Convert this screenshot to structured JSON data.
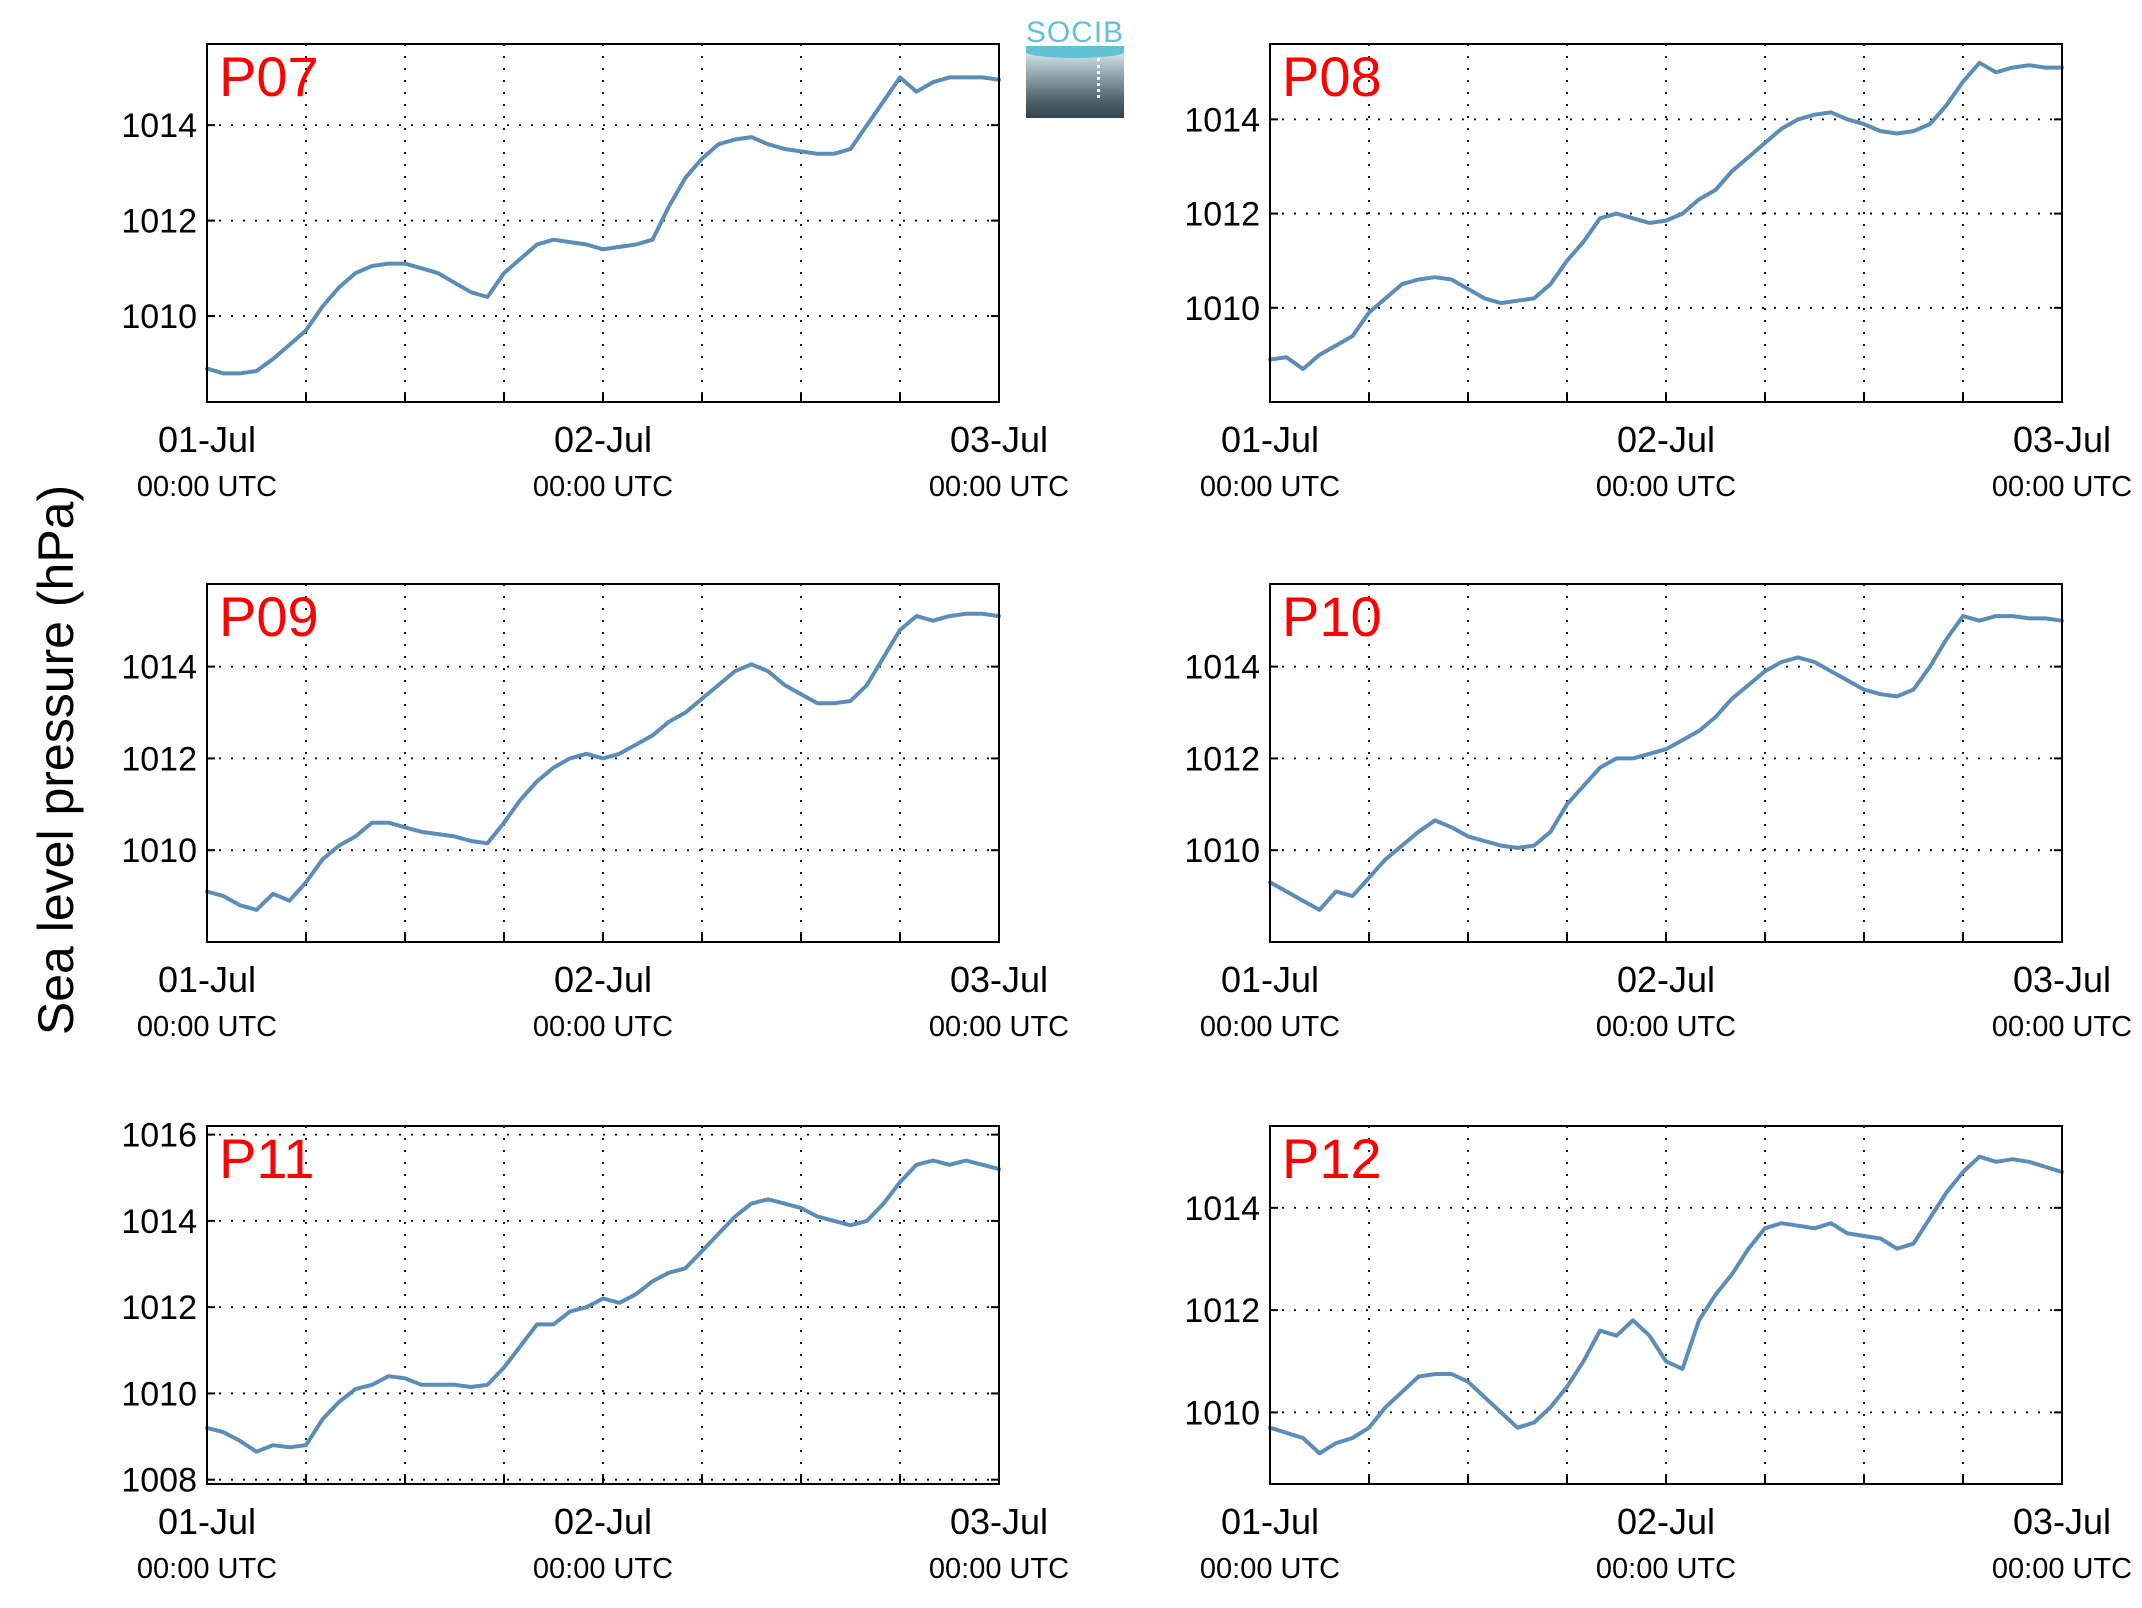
{
  "colors": {
    "line": "#5b8db8",
    "panel_label": "#ff0000",
    "axis": "#000000",
    "logo": "#5fc3d5"
  },
  "logo": {
    "text": "SOCIB"
  },
  "chart_data": {
    "type": "line",
    "ylabel": "Sea level pressure (hPa)",
    "x_tick_labels": [
      {
        "date": "2016-07-01T00:00",
        "line1": "01-Jul",
        "line2": "00:00 UTC"
      },
      {
        "date": "2016-07-02T00:00",
        "line1": "02-Jul",
        "line2": "00:00 UTC"
      },
      {
        "date": "2016-07-03T00:00",
        "line1": "03-Jul",
        "line2": "00:00 UTC"
      }
    ],
    "grid": true,
    "panels": [
      {
        "label": "P07",
        "xlim": [
          "2016-07-01T00:00",
          "2016-07-03T00:00"
        ],
        "ylim": [
          1008.2,
          1015.7
        ],
        "yticks": [
          1010,
          1012,
          1014
        ],
        "series": [
          {
            "x": [
              "2016-07-01T00:00",
              "2016-07-01T01:00",
              "2016-07-01T02:00",
              "2016-07-01T03:00",
              "2016-07-01T04:00",
              "2016-07-01T05:00",
              "2016-07-01T06:00",
              "2016-07-01T07:00",
              "2016-07-01T08:00",
              "2016-07-01T09:00",
              "2016-07-01T10:00",
              "2016-07-01T11:00",
              "2016-07-01T12:00",
              "2016-07-01T13:00",
              "2016-07-01T14:00",
              "2016-07-01T15:00",
              "2016-07-01T16:00",
              "2016-07-01T17:00",
              "2016-07-01T18:00",
              "2016-07-01T19:00",
              "2016-07-01T20:00",
              "2016-07-01T21:00",
              "2016-07-01T22:00",
              "2016-07-01T23:00",
              "2016-07-02T00:00",
              "2016-07-02T01:00",
              "2016-07-02T02:00",
              "2016-07-02T03:00",
              "2016-07-02T04:00",
              "2016-07-02T05:00",
              "2016-07-02T06:00",
              "2016-07-02T07:00",
              "2016-07-02T08:00",
              "2016-07-02T09:00",
              "2016-07-02T10:00",
              "2016-07-02T11:00",
              "2016-07-02T12:00",
              "2016-07-02T13:00",
              "2016-07-02T14:00",
              "2016-07-02T15:00",
              "2016-07-02T16:00",
              "2016-07-02T17:00",
              "2016-07-02T18:00",
              "2016-07-02T19:00",
              "2016-07-02T20:00",
              "2016-07-02T21:00",
              "2016-07-02T22:00",
              "2016-07-02T23:00",
              "2016-07-03T00:00"
            ],
            "y": [
              1008.9,
              1008.8,
              1008.8,
              1008.85,
              1009.1,
              1009.4,
              1009.7,
              1010.2,
              1010.6,
              1010.9,
              1011.05,
              1011.1,
              1011.1,
              1011.0,
              1010.9,
              1010.7,
              1010.5,
              1010.4,
              1010.9,
              1011.2,
              1011.5,
              1011.6,
              1011.55,
              1011.5,
              1011.4,
              1011.45,
              1011.5,
              1011.6,
              1012.3,
              1012.9,
              1013.3,
              1013.6,
              1013.7,
              1013.75,
              1013.6,
              1013.5,
              1013.45,
              1013.4,
              1013.4,
              1013.5,
              1014.0,
              1014.5,
              1015.0,
              1014.7,
              1014.9,
              1015.0,
              1015.0,
              1015.0,
              1014.95
            ]
          }
        ]
      },
      {
        "label": "P08",
        "xlim": [
          "2016-07-01T00:00",
          "2016-07-03T00:00"
        ],
        "ylim": [
          1008.0,
          1015.6
        ],
        "yticks": [
          1010,
          1012,
          1014
        ],
        "series": [
          {
            "x": [
              "2016-07-01T00:00",
              "2016-07-01T01:00",
              "2016-07-01T02:00",
              "2016-07-01T03:00",
              "2016-07-01T04:00",
              "2016-07-01T05:00",
              "2016-07-01T06:00",
              "2016-07-01T07:00",
              "2016-07-01T08:00",
              "2016-07-01T09:00",
              "2016-07-01T10:00",
              "2016-07-01T11:00",
              "2016-07-01T12:00",
              "2016-07-01T13:00",
              "2016-07-01T14:00",
              "2016-07-01T15:00",
              "2016-07-01T16:00",
              "2016-07-01T17:00",
              "2016-07-01T18:00",
              "2016-07-01T19:00",
              "2016-07-01T20:00",
              "2016-07-01T21:00",
              "2016-07-01T22:00",
              "2016-07-01T23:00",
              "2016-07-02T00:00",
              "2016-07-02T01:00",
              "2016-07-02T02:00",
              "2016-07-02T03:00",
              "2016-07-02T04:00",
              "2016-07-02T05:00",
              "2016-07-02T06:00",
              "2016-07-02T07:00",
              "2016-07-02T08:00",
              "2016-07-02T09:00",
              "2016-07-02T10:00",
              "2016-07-02T11:00",
              "2016-07-02T12:00",
              "2016-07-02T13:00",
              "2016-07-02T14:00",
              "2016-07-02T15:00",
              "2016-07-02T16:00",
              "2016-07-02T17:00",
              "2016-07-02T18:00",
              "2016-07-02T19:00",
              "2016-07-02T20:00",
              "2016-07-02T21:00",
              "2016-07-02T22:00",
              "2016-07-02T23:00",
              "2016-07-03T00:00"
            ],
            "y": [
              1008.9,
              1008.95,
              1008.7,
              1009.0,
              1009.2,
              1009.4,
              1009.9,
              1010.2,
              1010.5,
              1010.6,
              1010.65,
              1010.6,
              1010.4,
              1010.2,
              1010.1,
              1010.15,
              1010.2,
              1010.5,
              1011.0,
              1011.4,
              1011.9,
              1012.0,
              1011.9,
              1011.8,
              1011.85,
              1012.0,
              1012.3,
              1012.5,
              1012.9,
              1013.2,
              1013.5,
              1013.8,
              1014.0,
              1014.1,
              1014.15,
              1014.0,
              1013.9,
              1013.75,
              1013.7,
              1013.75,
              1013.9,
              1014.3,
              1014.8,
              1015.2,
              1015.0,
              1015.1,
              1015.15,
              1015.1,
              1015.1
            ]
          }
        ]
      },
      {
        "label": "P09",
        "xlim": [
          "2016-07-01T00:00",
          "2016-07-03T00:00"
        ],
        "ylim": [
          1008.0,
          1015.8
        ],
        "yticks": [
          1010,
          1012,
          1014
        ],
        "series": [
          {
            "x": [
              "2016-07-01T00:00",
              "2016-07-01T01:00",
              "2016-07-01T02:00",
              "2016-07-01T03:00",
              "2016-07-01T04:00",
              "2016-07-01T05:00",
              "2016-07-01T06:00",
              "2016-07-01T07:00",
              "2016-07-01T08:00",
              "2016-07-01T09:00",
              "2016-07-01T10:00",
              "2016-07-01T11:00",
              "2016-07-01T12:00",
              "2016-07-01T13:00",
              "2016-07-01T14:00",
              "2016-07-01T15:00",
              "2016-07-01T16:00",
              "2016-07-01T17:00",
              "2016-07-01T18:00",
              "2016-07-01T19:00",
              "2016-07-01T20:00",
              "2016-07-01T21:00",
              "2016-07-01T22:00",
              "2016-07-01T23:00",
              "2016-07-02T00:00",
              "2016-07-02T01:00",
              "2016-07-02T02:00",
              "2016-07-02T03:00",
              "2016-07-02T04:00",
              "2016-07-02T05:00",
              "2016-07-02T06:00",
              "2016-07-02T07:00",
              "2016-07-02T08:00",
              "2016-07-02T09:00",
              "2016-07-02T10:00",
              "2016-07-02T11:00",
              "2016-07-02T12:00",
              "2016-07-02T13:00",
              "2016-07-02T14:00",
              "2016-07-02T15:00",
              "2016-07-02T16:00",
              "2016-07-02T17:00",
              "2016-07-02T18:00",
              "2016-07-02T19:00",
              "2016-07-02T20:00",
              "2016-07-02T21:00",
              "2016-07-02T22:00",
              "2016-07-02T23:00",
              "2016-07-03T00:00"
            ],
            "y": [
              1009.1,
              1009.0,
              1008.8,
              1008.7,
              1009.05,
              1008.9,
              1009.3,
              1009.8,
              1010.1,
              1010.3,
              1010.6,
              1010.6,
              1010.5,
              1010.4,
              1010.35,
              1010.3,
              1010.2,
              1010.15,
              1010.6,
              1011.1,
              1011.5,
              1011.8,
              1012.0,
              1012.1,
              1012.0,
              1012.1,
              1012.3,
              1012.5,
              1012.8,
              1013.0,
              1013.3,
              1013.6,
              1013.9,
              1014.05,
              1013.9,
              1013.6,
              1013.4,
              1013.2,
              1013.2,
              1013.25,
              1013.6,
              1014.2,
              1014.8,
              1015.1,
              1015.0,
              1015.1,
              1015.15,
              1015.15,
              1015.1
            ]
          }
        ]
      },
      {
        "label": "P10",
        "xlim": [
          "2016-07-01T00:00",
          "2016-07-03T00:00"
        ],
        "ylim": [
          1008.0,
          1015.8
        ],
        "yticks": [
          1010,
          1012,
          1014
        ],
        "series": [
          {
            "x": [
              "2016-07-01T00:00",
              "2016-07-01T01:00",
              "2016-07-01T02:00",
              "2016-07-01T03:00",
              "2016-07-01T04:00",
              "2016-07-01T05:00",
              "2016-07-01T06:00",
              "2016-07-01T07:00",
              "2016-07-01T08:00",
              "2016-07-01T09:00",
              "2016-07-01T10:00",
              "2016-07-01T11:00",
              "2016-07-01T12:00",
              "2016-07-01T13:00",
              "2016-07-01T14:00",
              "2016-07-01T15:00",
              "2016-07-01T16:00",
              "2016-07-01T17:00",
              "2016-07-01T18:00",
              "2016-07-01T19:00",
              "2016-07-01T20:00",
              "2016-07-01T21:00",
              "2016-07-01T22:00",
              "2016-07-01T23:00",
              "2016-07-02T00:00",
              "2016-07-02T01:00",
              "2016-07-02T02:00",
              "2016-07-02T03:00",
              "2016-07-02T04:00",
              "2016-07-02T05:00",
              "2016-07-02T06:00",
              "2016-07-02T07:00",
              "2016-07-02T08:00",
              "2016-07-02T09:00",
              "2016-07-02T10:00",
              "2016-07-02T11:00",
              "2016-07-02T12:00",
              "2016-07-02T13:00",
              "2016-07-02T14:00",
              "2016-07-02T15:00",
              "2016-07-02T16:00",
              "2016-07-02T17:00",
              "2016-07-02T18:00",
              "2016-07-02T19:00",
              "2016-07-02T20:00",
              "2016-07-02T21:00",
              "2016-07-02T22:00",
              "2016-07-02T23:00",
              "2016-07-03T00:00"
            ],
            "y": [
              1009.3,
              1009.1,
              1008.9,
              1008.7,
              1009.1,
              1009.0,
              1009.4,
              1009.8,
              1010.1,
              1010.4,
              1010.65,
              1010.5,
              1010.3,
              1010.2,
              1010.1,
              1010.05,
              1010.1,
              1010.4,
              1011.0,
              1011.4,
              1011.8,
              1012.0,
              1012.0,
              1012.1,
              1012.2,
              1012.4,
              1012.6,
              1012.9,
              1013.3,
              1013.6,
              1013.9,
              1014.1,
              1014.2,
              1014.1,
              1013.9,
              1013.7,
              1013.5,
              1013.4,
              1013.35,
              1013.5,
              1014.0,
              1014.6,
              1015.1,
              1015.0,
              1015.1,
              1015.1,
              1015.05,
              1015.05,
              1015.0
            ]
          }
        ]
      },
      {
        "label": "P11",
        "xlim": [
          "2016-07-01T00:00",
          "2016-07-03T00:00"
        ],
        "ylim": [
          1007.9,
          1016.2
        ],
        "yticks": [
          1008,
          1010,
          1012,
          1014,
          1016
        ],
        "series": [
          {
            "x": [
              "2016-07-01T00:00",
              "2016-07-01T01:00",
              "2016-07-01T02:00",
              "2016-07-01T03:00",
              "2016-07-01T04:00",
              "2016-07-01T05:00",
              "2016-07-01T06:00",
              "2016-07-01T07:00",
              "2016-07-01T08:00",
              "2016-07-01T09:00",
              "2016-07-01T10:00",
              "2016-07-01T11:00",
              "2016-07-01T12:00",
              "2016-07-01T13:00",
              "2016-07-01T14:00",
              "2016-07-01T15:00",
              "2016-07-01T16:00",
              "2016-07-01T17:00",
              "2016-07-01T18:00",
              "2016-07-01T19:00",
              "2016-07-01T20:00",
              "2016-07-01T21:00",
              "2016-07-01T22:00",
              "2016-07-01T23:00",
              "2016-07-02T00:00",
              "2016-07-02T01:00",
              "2016-07-02T02:00",
              "2016-07-02T03:00",
              "2016-07-02T04:00",
              "2016-07-02T05:00",
              "2016-07-02T06:00",
              "2016-07-02T07:00",
              "2016-07-02T08:00",
              "2016-07-02T09:00",
              "2016-07-02T10:00",
              "2016-07-02T11:00",
              "2016-07-02T12:00",
              "2016-07-02T13:00",
              "2016-07-02T14:00",
              "2016-07-02T15:00",
              "2016-07-02T16:00",
              "2016-07-02T17:00",
              "2016-07-02T18:00",
              "2016-07-02T19:00",
              "2016-07-02T20:00",
              "2016-07-02T21:00",
              "2016-07-02T22:00",
              "2016-07-02T23:00",
              "2016-07-03T00:00"
            ],
            "y": [
              1009.2,
              1009.1,
              1008.9,
              1008.65,
              1008.8,
              1008.75,
              1008.8,
              1009.4,
              1009.8,
              1010.1,
              1010.2,
              1010.4,
              1010.35,
              1010.2,
              1010.2,
              1010.2,
              1010.15,
              1010.2,
              1010.6,
              1011.1,
              1011.6,
              1011.6,
              1011.9,
              1012.0,
              1012.2,
              1012.1,
              1012.3,
              1012.6,
              1012.8,
              1012.9,
              1013.3,
              1013.7,
              1014.1,
              1014.4,
              1014.5,
              1014.4,
              1014.3,
              1014.1,
              1014.0,
              1013.9,
              1014.0,
              1014.4,
              1014.9,
              1015.3,
              1015.4,
              1015.3,
              1015.4,
              1015.3,
              1015.2
            ]
          }
        ]
      },
      {
        "label": "P12",
        "xlim": [
          "2016-07-01T00:00",
          "2016-07-03T00:00"
        ],
        "ylim": [
          1008.6,
          1015.6
        ],
        "yticks": [
          1010,
          1012,
          1014
        ],
        "series": [
          {
            "x": [
              "2016-07-01T00:00",
              "2016-07-01T01:00",
              "2016-07-01T02:00",
              "2016-07-01T03:00",
              "2016-07-01T04:00",
              "2016-07-01T05:00",
              "2016-07-01T06:00",
              "2016-07-01T07:00",
              "2016-07-01T08:00",
              "2016-07-01T09:00",
              "2016-07-01T10:00",
              "2016-07-01T11:00",
              "2016-07-01T12:00",
              "2016-07-01T13:00",
              "2016-07-01T14:00",
              "2016-07-01T15:00",
              "2016-07-01T16:00",
              "2016-07-01T17:00",
              "2016-07-01T18:00",
              "2016-07-01T19:00",
              "2016-07-01T20:00",
              "2016-07-01T21:00",
              "2016-07-01T22:00",
              "2016-07-01T23:00",
              "2016-07-02T00:00",
              "2016-07-02T01:00",
              "2016-07-02T02:00",
              "2016-07-02T03:00",
              "2016-07-02T04:00",
              "2016-07-02T05:00",
              "2016-07-02T06:00",
              "2016-07-02T07:00",
              "2016-07-02T08:00",
              "2016-07-02T09:00",
              "2016-07-02T10:00",
              "2016-07-02T11:00",
              "2016-07-02T12:00",
              "2016-07-02T13:00",
              "2016-07-02T14:00",
              "2016-07-02T15:00",
              "2016-07-02T16:00",
              "2016-07-02T17:00",
              "2016-07-02T18:00",
              "2016-07-02T19:00",
              "2016-07-02T20:00",
              "2016-07-02T21:00",
              "2016-07-02T22:00",
              "2016-07-02T23:00",
              "2016-07-03T00:00"
            ],
            "y": [
              1009.7,
              1009.6,
              1009.5,
              1009.2,
              1009.4,
              1009.5,
              1009.7,
              1010.1,
              1010.4,
              1010.7,
              1010.75,
              1010.75,
              1010.6,
              1010.3,
              1010.0,
              1009.7,
              1009.8,
              1010.1,
              1010.5,
              1011.0,
              1011.6,
              1011.5,
              1011.8,
              1011.5,
              1011.0,
              1010.85,
              1011.8,
              1012.3,
              1012.7,
              1013.2,
              1013.6,
              1013.7,
              1013.65,
              1013.6,
              1013.7,
              1013.5,
              1013.45,
              1013.4,
              1013.2,
              1013.3,
              1013.8,
              1014.3,
              1014.7,
              1015.0,
              1014.9,
              1014.95,
              1014.9,
              1014.8,
              1014.7
            ]
          }
        ]
      }
    ]
  }
}
